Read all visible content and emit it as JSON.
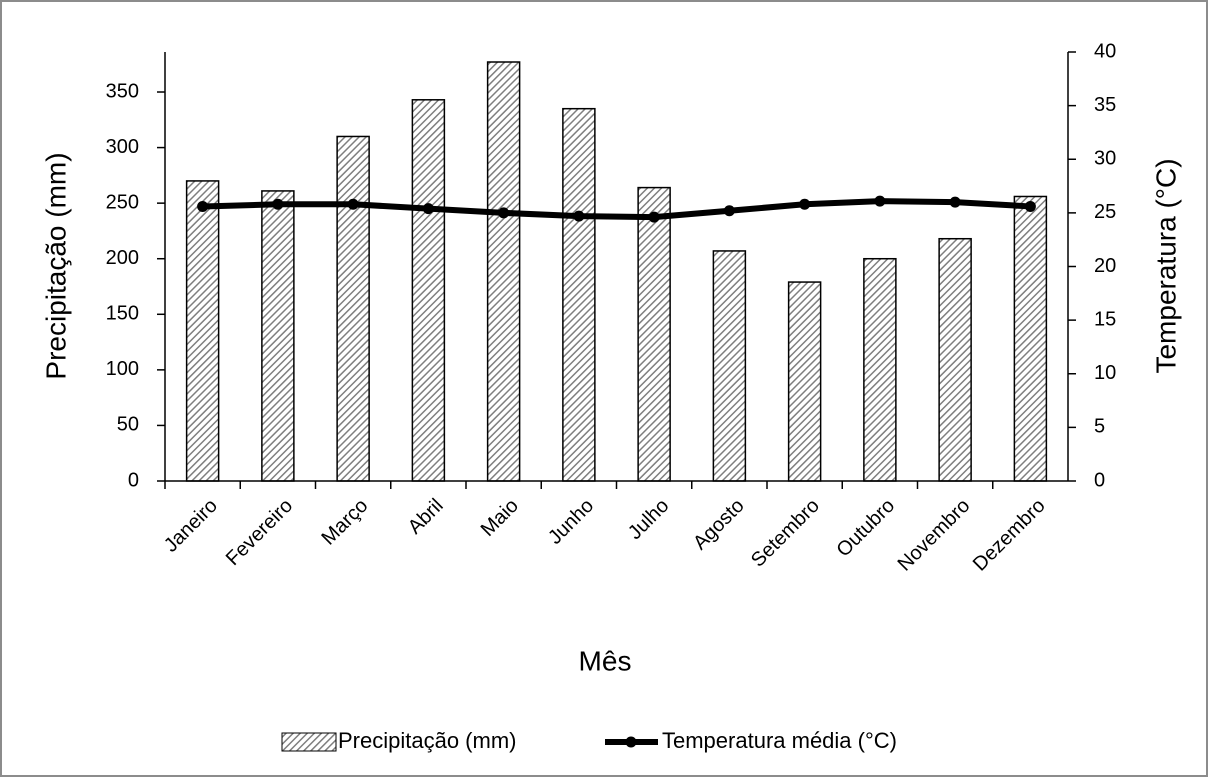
{
  "chart_data": {
    "type": "bar_line",
    "categories": [
      "Janeiro",
      "Fevereiro",
      "Março",
      "Abril",
      "Maio",
      "Junho",
      "Julho",
      "Agosto",
      "Setembro",
      "Outubro",
      "Novembro",
      "Dezembro"
    ],
    "series": [
      {
        "name": "Precipitação (mm)",
        "type": "bar",
        "color": "#7f7f7f",
        "values": [
          270,
          261,
          310,
          343,
          377,
          335,
          264,
          207,
          179,
          200,
          218,
          256
        ]
      },
      {
        "name": "Temperatura média (°C)",
        "type": "line",
        "axis": "y2",
        "color": "#000000",
        "values": [
          25.6,
          25.8,
          25.8,
          25.4,
          25.0,
          24.7,
          24.6,
          25.2,
          25.8,
          26.1,
          26.0,
          25.6
        ]
      }
    ],
    "xlabel": "Mês",
    "ylabel": "Precipitação (mm)",
    "y2label": "Temperatura (°C)",
    "ylim": [
      0,
      386
    ],
    "yticks": [
      0,
      50,
      100,
      150,
      200,
      250,
      300,
      350
    ],
    "y2lim": [
      0,
      40
    ],
    "y2ticks": [
      0,
      5,
      10,
      15,
      20,
      25,
      30,
      35,
      40
    ],
    "legend": "bottom"
  }
}
